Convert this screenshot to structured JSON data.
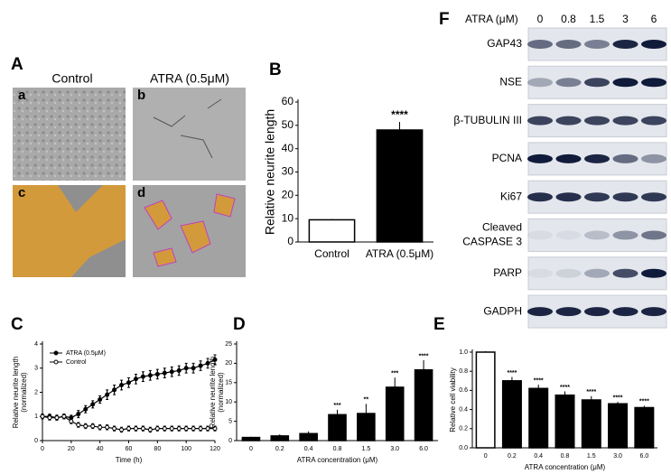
{
  "panel_A": {
    "label": "A",
    "columns": [
      "Control",
      "ATRA (0.5μM)"
    ],
    "images": [
      "a",
      "b",
      "c",
      "d"
    ]
  },
  "chart_data": [
    {
      "type": "bar",
      "panel": "B",
      "ylabel": [
        "Relative neurite length"
      ],
      "categories": [
        "Control",
        "ATRA (0.5μM)"
      ],
      "values": [
        9.5,
        48
      ],
      "errors": [
        0.3,
        3.5
      ],
      "colors": [
        "#ffffff",
        "#000000"
      ],
      "significance": [
        null,
        "****"
      ],
      "ylim": [
        0,
        60
      ],
      "yticks": [
        0,
        10,
        20,
        30,
        40,
        50,
        60
      ]
    },
    {
      "type": "line",
      "panel": "C",
      "ylabel": [
        "Relative neurite length",
        "(normalized)"
      ],
      "xlabel": "Time (h)",
      "x": [
        0,
        5,
        10,
        15,
        20,
        25,
        30,
        35,
        40,
        45,
        50,
        55,
        60,
        65,
        70,
        75,
        80,
        85,
        90,
        95,
        100,
        105,
        110,
        115,
        120
      ],
      "series": [
        {
          "name": "ATRA (0.5μM)",
          "color": "#000000",
          "marker": "filled",
          "values": [
            1.0,
            1.0,
            0.95,
            1.0,
            0.95,
            1.1,
            1.3,
            1.5,
            1.7,
            1.9,
            2.1,
            2.3,
            2.4,
            2.55,
            2.65,
            2.7,
            2.75,
            2.8,
            2.85,
            2.9,
            3.0,
            3.0,
            3.1,
            3.2,
            3.35
          ],
          "errors": [
            0.1,
            0.1,
            0.1,
            0.1,
            0.1,
            0.15,
            0.15,
            0.15,
            0.15,
            0.2,
            0.2,
            0.2,
            0.2,
            0.2,
            0.2,
            0.2,
            0.2,
            0.2,
            0.2,
            0.2,
            0.2,
            0.2,
            0.2,
            0.2,
            0.2
          ]
        },
        {
          "name": "Control",
          "color": "#000000",
          "marker": "open",
          "values": [
            1.0,
            0.95,
            0.95,
            1.0,
            0.8,
            0.65,
            0.6,
            0.6,
            0.55,
            0.55,
            0.5,
            0.45,
            0.5,
            0.5,
            0.5,
            0.45,
            0.5,
            0.5,
            0.5,
            0.5,
            0.5,
            0.5,
            0.5,
            0.5,
            0.5
          ],
          "errors": [
            0.1,
            0.1,
            0.1,
            0.1,
            0.1,
            0.1,
            0.1,
            0.1,
            0.1,
            0.1,
            0.1,
            0.1,
            0.1,
            0.1,
            0.1,
            0.1,
            0.1,
            0.1,
            0.1,
            0.1,
            0.1,
            0.1,
            0.1,
            0.1,
            0.1
          ]
        }
      ],
      "legend": "upper left",
      "xlim": [
        0,
        120
      ],
      "xticks": [
        0,
        20,
        40,
        60,
        80,
        100,
        120
      ],
      "ylim": [
        0,
        4
      ],
      "yticks": [
        0,
        1,
        2,
        3,
        4
      ]
    },
    {
      "type": "bar",
      "panel": "D",
      "ylabel": [
        "Relative neurite length",
        "(normalized)"
      ],
      "xlabel": "ATRA concentration (μM)",
      "categories": [
        "0",
        "0.2",
        "0.4",
        "0.8",
        "1.5",
        "3.0",
        "6.0"
      ],
      "values": [
        0.8,
        1.2,
        1.8,
        6.7,
        7,
        13.8,
        18.3
      ],
      "errors": [
        0.2,
        0.4,
        0.6,
        1.3,
        2.5,
        2.5,
        2.5
      ],
      "colors": [
        "#000000",
        "#000000",
        "#000000",
        "#000000",
        "#000000",
        "#000000",
        "#000000"
      ],
      "significance": [
        null,
        null,
        null,
        "***",
        "**",
        "***",
        "****"
      ],
      "ylim": [
        0,
        25
      ],
      "yticks": [
        0,
        5,
        10,
        15,
        20,
        25
      ]
    },
    {
      "type": "bar",
      "panel": "E",
      "ylabel": [
        "Relative cell viability"
      ],
      "xlabel": "ATRA concentration (μM)",
      "categories": [
        "0",
        "0.2",
        "0.4",
        "0.8",
        "1.5",
        "3.0",
        "6.0"
      ],
      "values": [
        1.0,
        0.7,
        0.62,
        0.55,
        0.5,
        0.46,
        0.42
      ],
      "errors": [
        0.01,
        0.04,
        0.04,
        0.04,
        0.04,
        0.02,
        0.02
      ],
      "colors": [
        "#ffffff",
        "#000000",
        "#000000",
        "#000000",
        "#000000",
        "#000000",
        "#000000"
      ],
      "significance": [
        null,
        "****",
        "****",
        "****",
        "****",
        "****",
        "****"
      ],
      "ylim": [
        0,
        1
      ],
      "yticks": [
        {
          "value": 0,
          "label": "0.0"
        },
        0.2,
        0.4,
        0.6,
        0.8,
        {
          "value": 1,
          "label": "1.0"
        }
      ]
    }
  ],
  "blot": {
    "label": "F",
    "treatment": "ATRA (μM)",
    "doses": [
      "0",
      "0.8",
      "1.5",
      "3",
      "6"
    ],
    "rows": [
      {
        "lines": [
          "GAP43"
        ],
        "intensity": [
          0.6,
          0.6,
          0.5,
          0.95,
          1.0
        ]
      },
      {
        "lines": [
          "NSE"
        ],
        "intensity": [
          0.3,
          0.5,
          0.8,
          1.0,
          1.0
        ]
      },
      {
        "lines": [
          "β-TUBULIN III"
        ],
        "intensity": [
          0.8,
          0.8,
          0.8,
          0.8,
          0.8
        ]
      },
      {
        "lines": [
          "PCNA"
        ],
        "intensity": [
          1.0,
          1.0,
          0.95,
          0.6,
          0.4
        ]
      },
      {
        "lines": [
          "Ki67"
        ],
        "intensity": [
          0.9,
          0.9,
          0.85,
          0.85,
          0.85
        ]
      },
      {
        "lines": [
          "Cleaved",
          "CASPASE 3"
        ],
        "intensity": [
          0.05,
          0.05,
          0.2,
          0.4,
          0.55
        ]
      },
      {
        "lines": [
          "PARP"
        ],
        "intensity": [
          0.05,
          0.1,
          0.3,
          0.75,
          1.0
        ]
      },
      {
        "lines": [
          "GADPH"
        ],
        "intensity": [
          0.95,
          0.95,
          0.95,
          0.95,
          0.95
        ]
      }
    ]
  }
}
